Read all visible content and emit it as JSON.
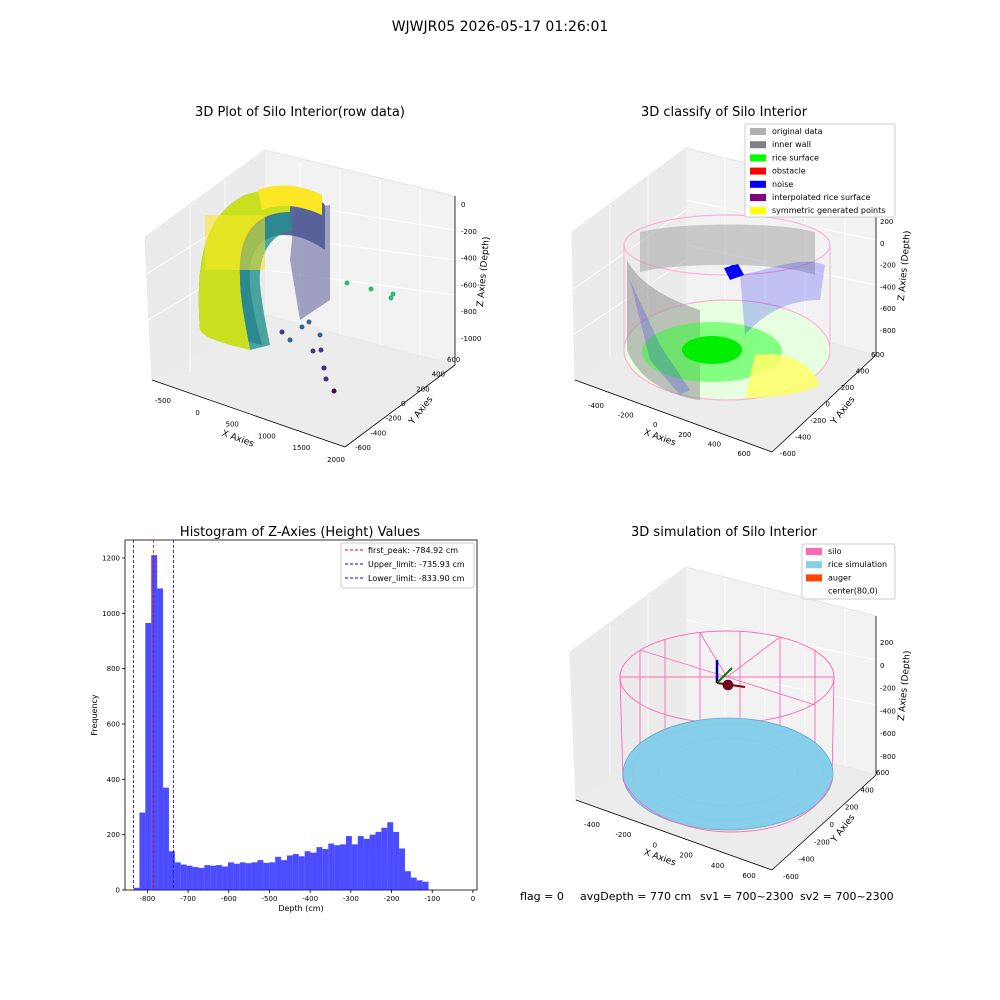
{
  "suptitle": "WJWJR05 2026-05-17 01:26:01",
  "footer": {
    "flag": "flag = 0",
    "avg_depth": "avgDepth = 770 cm",
    "sv1": "sv1 = 700~2300",
    "sv2": "sv2 = 700~2300"
  },
  "panel_raw": {
    "title": "3D Plot of Silo Interior(row data)",
    "xlabel": "X Axies",
    "ylabel": "Y Axies",
    "zlabel": "Z Axies (Depth)",
    "x_ticks": [
      "-500",
      "0",
      "500",
      "1000",
      "1500",
      "2000"
    ],
    "y_ticks": [
      "600",
      "400",
      "200",
      "0",
      "-200",
      "-400",
      "-600"
    ],
    "z_ticks": [
      "0",
      "-200",
      "-400",
      "-600",
      "-800",
      "-1000"
    ],
    "colormap": [
      "#440154",
      "#3b528b",
      "#21918c",
      "#5ec962",
      "#fde725"
    ]
  },
  "panel_classify": {
    "title": "3D classify of Silo Interior",
    "xlabel": "X Axies",
    "ylabel": "Y Axies",
    "zlabel": "Z Axies (Depth)",
    "x_ticks": [
      "-400",
      "-200",
      "0",
      "200",
      "400",
      "600"
    ],
    "y_ticks": [
      "600",
      "400",
      "200",
      "0",
      "-200",
      "-400",
      "-600"
    ],
    "z_ticks": [
      "200",
      "0",
      "-200",
      "-400",
      "-600",
      "-800"
    ],
    "legend": [
      {
        "label": "original data",
        "color": "#b0b0b0"
      },
      {
        "label": "inner wall",
        "color": "#808080"
      },
      {
        "label": "rice surface",
        "color": "#00ff00"
      },
      {
        "label": "obstacle",
        "color": "#ff0000"
      },
      {
        "label": "noise",
        "color": "#0000ff"
      },
      {
        "label": "interpolated rice surface",
        "color": "#800080"
      },
      {
        "label": "symmetric generated points",
        "color": "#ffff00"
      }
    ]
  },
  "panel_sim": {
    "title": "3D simulation of Silo Interior",
    "xlabel": "X Axies",
    "ylabel": "Y Axies",
    "zlabel": "Z Axies (Depth)",
    "x_ticks": [
      "-400",
      "-200",
      "0",
      "200",
      "400",
      "600"
    ],
    "y_ticks": [
      "600",
      "400",
      "200",
      "0",
      "-200",
      "-400",
      "-600"
    ],
    "z_ticks": [
      "200",
      "0",
      "-200",
      "-400",
      "-600",
      "-800"
    ],
    "legend": [
      {
        "label": "silo",
        "color": "#ff69b4"
      },
      {
        "label": "rice simulation",
        "color": "#87ceeb"
      },
      {
        "label": "auger",
        "color": "#ff4500"
      },
      {
        "label": "center(80,0)",
        "color": "none"
      }
    ]
  },
  "chart_data": {
    "type": "bar",
    "title": "Histogram of Z-Axies (Height) Values",
    "xlabel": "Depth (cm)",
    "ylabel": "Frequency",
    "bar_color": "#0000ff",
    "xlim": [
      -855,
      10
    ],
    "ylim": [
      0,
      1265
    ],
    "x_ticks": [
      -800,
      -700,
      -600,
      -500,
      -400,
      -300,
      -200,
      -100,
      0
    ],
    "y_ticks": [
      0,
      200,
      400,
      600,
      800,
      1000,
      1200
    ],
    "bin_width": 14.5,
    "bin_start": -834,
    "values": [
      8,
      280,
      965,
      1210,
      1090,
      370,
      140,
      100,
      92,
      88,
      83,
      80,
      90,
      88,
      90,
      85,
      100,
      95,
      100,
      97,
      100,
      108,
      98,
      100,
      120,
      108,
      125,
      130,
      122,
      140,
      135,
      155,
      148,
      168,
      162,
      165,
      195,
      165,
      195,
      185,
      200,
      210,
      225,
      245,
      210,
      150,
      68,
      45,
      35,
      30
    ],
    "reference_lines": [
      {
        "label": "first_peak: -784.92 cm",
        "x": -784.92,
        "color": "#ff0000"
      },
      {
        "label": "Upper_limit: -735.93 cm",
        "x": -735.93,
        "color": "#0000ff"
      },
      {
        "label": "Lower_limit: -833.90 cm",
        "x": -833.9,
        "color": "#0000ff"
      }
    ],
    "legend_position": "top-right"
  }
}
